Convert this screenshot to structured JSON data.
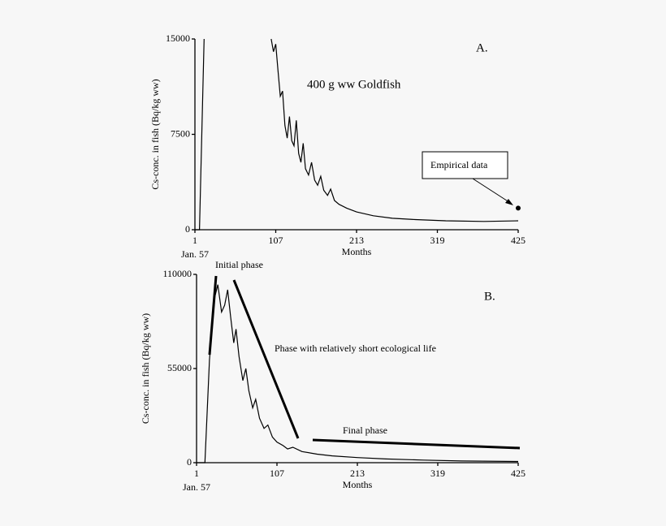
{
  "chart_data": [
    {
      "type": "line",
      "x_label": "Months",
      "x_sublabel": "Jan. 57",
      "y_label": "Cs-conc. in fish (Bq/kg ww)",
      "annotations": [
        "A.",
        "400 g ww Goldfish",
        "Empirical data"
      ],
      "x": [
        1,
        7,
        13,
        null,
        101,
        104,
        107,
        110,
        113,
        116,
        119,
        122,
        125,
        128,
        131,
        134,
        137,
        140,
        143,
        146,
        150,
        154,
        158,
        162,
        166,
        170,
        175,
        179,
        184,
        190,
        200,
        213,
        235,
        260,
        290,
        330,
        380,
        425
      ],
      "series": [
        {
          "color": "#000000",
          "values": [
            0,
            0,
            15000,
            null,
            15000,
            14000,
            14600,
            12500,
            10500,
            10900,
            8200,
            7200,
            8900,
            7000,
            6600,
            8600,
            6000,
            5300,
            6800,
            4800,
            4300,
            5300,
            3900,
            3500,
            4200,
            3100,
            2700,
            3200,
            2300,
            2000,
            1700,
            1400,
            1100,
            900,
            800,
            700,
            650,
            700
          ]
        }
      ],
      "points": {
        "x": [
          425
        ],
        "values": [
          1700
        ],
        "color": "#000000"
      },
      "xlim": [
        1,
        425
      ],
      "xticks": [
        1,
        107,
        213,
        319,
        425
      ],
      "ylim": [
        0,
        15000
      ],
      "yticks": [
        0,
        7500,
        15000
      ]
    },
    {
      "type": "line",
      "x_label": "Months",
      "x_sublabel": "Jan. 57",
      "y_label": "Cs-conc. in fish (Bq/kg ww)",
      "annotations": [
        "B.",
        "Initial phase",
        "Phase with relatively short ecological life",
        "Final phase"
      ],
      "x": [
        1,
        12,
        18,
        24,
        29,
        34,
        38,
        42,
        46,
        50,
        53,
        57,
        62,
        66,
        70,
        75,
        79,
        84,
        90,
        95,
        101,
        107,
        115,
        121,
        128,
        140,
        160,
        180,
        213,
        250,
        300,
        350,
        425
      ],
      "series": [
        {
          "color": "#000000",
          "values": [
            0,
            0,
            60000,
            95000,
            104000,
            88000,
            92000,
            101000,
            85000,
            70000,
            78000,
            62000,
            48000,
            55000,
            42000,
            32000,
            37000,
            26000,
            20000,
            22000,
            15000,
            12000,
            10000,
            8000,
            9000,
            6500,
            5000,
            4000,
            3000,
            2200,
            1500,
            1000,
            700
          ]
        }
      ],
      "xlim": [
        1,
        425
      ],
      "xticks": [
        1,
        107,
        213,
        319,
        425
      ],
      "ylim": [
        0,
        110000
      ],
      "yticks": [
        0,
        55000,
        110000
      ]
    }
  ]
}
